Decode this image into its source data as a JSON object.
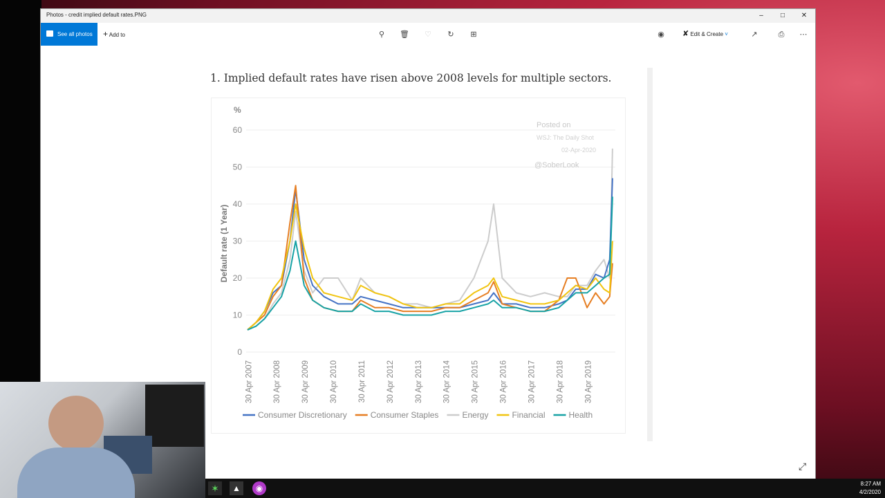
{
  "window": {
    "title": "Photos - credit implied default rates.PNG"
  },
  "toolbar": {
    "see_all_label": "See all photos",
    "add_to_label": "Add to",
    "edit_create_label": "Edit & Create"
  },
  "heading": "1. Implied default rates have risen above 2008 levels for multiple sectors.",
  "watermark": {
    "posted": "Posted on",
    "source": "WSJ: The Daily Shot",
    "date": "02-Apr-2020",
    "handle": "@SoberLook"
  },
  "taskbar": {
    "time": "8:27 AM",
    "date": "4/2/2020"
  },
  "colors": {
    "accent": "#0078d7"
  },
  "chart_data": {
    "type": "line",
    "ylabel": "Default rate (1 Year)",
    "yunit": "%",
    "ylim": [
      0,
      60
    ],
    "yticks": [
      0,
      10,
      20,
      30,
      40,
      50,
      60
    ],
    "xticks": [
      "30 Apr 2007",
      "30 Apr 2008",
      "30 Apr 2009",
      "30 Apr 2010",
      "30 Apr 2011",
      "30 Apr 2012",
      "30 Apr 2013",
      "30 Apr 2014",
      "30 Apr 2015",
      "30 Apr 2016",
      "30 Apr 2017",
      "30 Apr 2018",
      "30 Apr 2019"
    ],
    "x": [
      2007.3,
      2007.6,
      2007.9,
      2008.2,
      2008.5,
      2008.8,
      2009.0,
      2009.3,
      2009.6,
      2010.0,
      2010.5,
      2011.0,
      2011.3,
      2011.8,
      2012.3,
      2012.8,
      2013.3,
      2013.8,
      2014.3,
      2014.8,
      2015.3,
      2015.8,
      2016.0,
      2016.3,
      2016.8,
      2017.3,
      2017.8,
      2018.3,
      2018.6,
      2018.9,
      2019.3,
      2019.6,
      2019.9,
      2020.1,
      2020.2
    ],
    "series": [
      {
        "name": "Consumer Discretionary",
        "color": "#4472c4",
        "values": [
          6,
          8,
          11,
          16,
          18,
          30,
          44,
          25,
          18,
          15,
          13,
          13,
          15,
          14,
          13,
          12,
          12,
          12,
          12,
          12,
          13,
          14,
          16,
          13,
          13,
          12,
          12,
          13,
          14,
          17,
          17,
          21,
          20,
          25,
          47
        ]
      },
      {
        "name": "Consumer Staples",
        "color": "#e67e22",
        "values": [
          6,
          8,
          10,
          15,
          18,
          35,
          45,
          20,
          14,
          12,
          11,
          11,
          14,
          12,
          12,
          11,
          11,
          11,
          12,
          12,
          14,
          16,
          19,
          13,
          12,
          11,
          11,
          14,
          20,
          20,
          12,
          16,
          13,
          15,
          24
        ]
      },
      {
        "name": "Energy",
        "color": "#cccccc",
        "values": [
          6,
          7,
          9,
          13,
          16,
          25,
          38,
          22,
          16,
          20,
          20,
          14,
          20,
          16,
          15,
          13,
          13,
          12,
          13,
          14,
          20,
          30,
          40,
          20,
          16,
          15,
          16,
          15,
          15,
          18,
          18,
          22,
          25,
          20,
          55
        ]
      },
      {
        "name": "Financial",
        "color": "#f1c40f",
        "values": [
          6,
          8,
          11,
          17,
          20,
          30,
          40,
          28,
          20,
          16,
          15,
          14,
          18,
          16,
          15,
          13,
          12,
          12,
          13,
          13,
          16,
          18,
          20,
          15,
          14,
          13,
          13,
          14,
          16,
          18,
          17,
          20,
          17,
          16,
          30
        ]
      },
      {
        "name": "Health",
        "color": "#17a2a5",
        "values": [
          6,
          7,
          9,
          12,
          15,
          22,
          30,
          18,
          14,
          12,
          11,
          11,
          13,
          11,
          11,
          10,
          10,
          10,
          11,
          11,
          12,
          13,
          14,
          12,
          12,
          11,
          11,
          12,
          14,
          16,
          16,
          18,
          20,
          21,
          42
        ]
      }
    ]
  }
}
